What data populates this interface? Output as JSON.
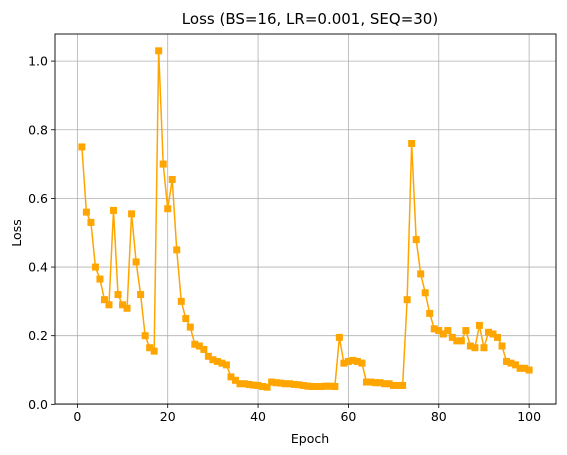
{
  "chart_data": {
    "type": "line",
    "title": "Loss (BS=16, LR=0.001, SEQ=30)",
    "xlabel": "Epoch",
    "ylabel": "Loss",
    "xlim": [
      -4.95,
      105.95
    ],
    "ylim": [
      0.001,
      1.079
    ],
    "xticks": [
      0,
      20,
      40,
      60,
      80,
      100
    ],
    "yticks": [
      0.0,
      0.2,
      0.4,
      0.6,
      0.8,
      1.0
    ],
    "xtick_labels": [
      "0",
      "20",
      "40",
      "60",
      "80",
      "100"
    ],
    "ytick_labels": [
      "0.0",
      "0.2",
      "0.4",
      "0.6",
      "0.8",
      "1.0"
    ],
    "grid": true,
    "marker": "square",
    "color": "#ffa500",
    "series": [
      {
        "x": [
          1,
          2,
          3,
          4,
          5,
          6,
          7,
          8,
          9,
          10,
          11,
          12,
          13,
          14,
          15,
          16,
          17,
          18,
          19,
          20,
          21,
          22,
          23,
          24,
          25,
          26,
          27,
          28,
          29,
          30,
          31,
          32,
          33,
          34,
          35,
          36,
          37,
          38,
          39,
          40,
          41,
          42,
          43,
          44,
          45,
          46,
          47,
          48,
          49,
          50,
          51,
          52,
          53,
          54,
          55,
          56,
          57,
          58,
          59,
          60,
          61,
          62,
          63,
          64,
          65,
          66,
          67,
          68,
          69,
          70,
          71,
          72,
          73,
          74,
          75,
          76,
          77,
          78,
          79,
          80,
          81,
          82,
          83,
          84,
          85,
          86,
          87,
          88,
          89,
          90,
          91,
          92,
          93,
          94,
          95,
          96,
          97,
          98,
          99,
          100
        ],
        "values": [
          0.75,
          0.56,
          0.53,
          0.4,
          0.365,
          0.305,
          0.29,
          0.565,
          0.32,
          0.29,
          0.28,
          0.555,
          0.415,
          0.32,
          0.2,
          0.165,
          0.155,
          1.03,
          0.7,
          0.57,
          0.655,
          0.45,
          0.3,
          0.25,
          0.225,
          0.175,
          0.17,
          0.16,
          0.14,
          0.13,
          0.125,
          0.12,
          0.115,
          0.08,
          0.07,
          0.06,
          0.06,
          0.058,
          0.056,
          0.055,
          0.052,
          0.05,
          0.065,
          0.063,
          0.062,
          0.06,
          0.06,
          0.058,
          0.057,
          0.055,
          0.053,
          0.052,
          0.052,
          0.052,
          0.053,
          0.053,
          0.052,
          0.195,
          0.12,
          0.125,
          0.128,
          0.125,
          0.12,
          0.065,
          0.065,
          0.063,
          0.063,
          0.06,
          0.06,
          0.055,
          0.055,
          0.055,
          0.305,
          0.76,
          0.48,
          0.38,
          0.325,
          0.265,
          0.22,
          0.215,
          0.205,
          0.215,
          0.195,
          0.185,
          0.185,
          0.215,
          0.17,
          0.165,
          0.23,
          0.165,
          0.21,
          0.205,
          0.195,
          0.17,
          0.125,
          0.12,
          0.115,
          0.105,
          0.105,
          0.1
        ]
      }
    ]
  }
}
